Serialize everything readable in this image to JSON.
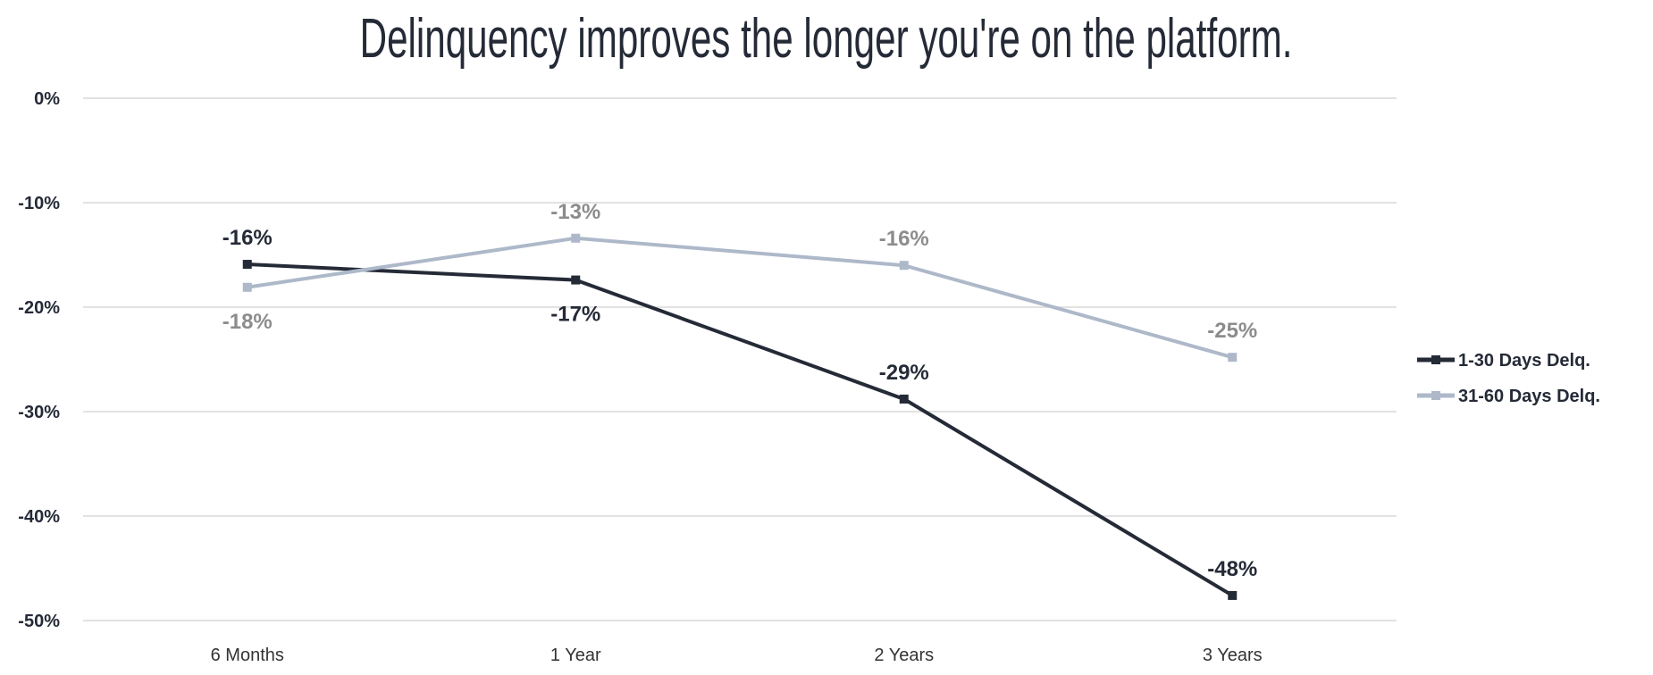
{
  "chart_data": {
    "type": "line",
    "title": "Delinquency improves the longer you're on the platform.",
    "xlabel": "",
    "ylabel": "",
    "categories": [
      "6 Months",
      "1 Year",
      "2 Years",
      "3 Years"
    ],
    "ylim": [
      -50,
      0
    ],
    "yticks": [
      0,
      -10,
      -20,
      -30,
      -40,
      -50
    ],
    "ytick_labels": [
      "0%",
      "-10%",
      "-20%",
      "-30%",
      "-40%",
      "-50%"
    ],
    "grid": true,
    "legend_position": "right",
    "series": [
      {
        "name": "1-30 Days Delq.",
        "color": "#252a37",
        "label_color": "#252a37",
        "values": [
          -15.9,
          -17.4,
          -28.8,
          -47.6
        ],
        "labels": [
          "-16%",
          "-17%",
          "-29%",
          "-48%"
        ],
        "label_pos": [
          "above",
          "below",
          "above",
          "above"
        ]
      },
      {
        "name": "31-60 Days Delq.",
        "color": "#adb8c9",
        "label_color": "#8c8c8c",
        "values": [
          -18.1,
          -13.4,
          -16.0,
          -24.8
        ],
        "labels": [
          "-18%",
          "-13%",
          "-16%",
          "-25%"
        ],
        "label_pos": [
          "below",
          "above",
          "above",
          "above"
        ]
      }
    ]
  }
}
